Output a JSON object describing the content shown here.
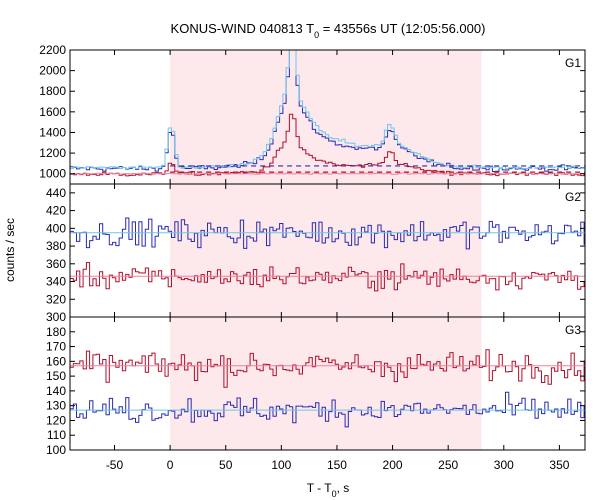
{
  "chart_data": {
    "type": "line",
    "title": "KONUS-WIND 040813 T₀ = 43556s UT (12:05:56.000)",
    "title_parts": {
      "prefix": "KONUS-WIND 040813 T",
      "sub": "0",
      "suffix": " = 43556s UT (12:05:56.000)"
    },
    "xlabel_parts": {
      "prefix": "T - T",
      "sub": "0",
      "suffix": ", s"
    },
    "ylabel": "counts / sec",
    "xlim": [
      -90,
      373
    ],
    "xticks": [
      -50,
      0,
      50,
      100,
      150,
      200,
      250,
      300,
      350
    ],
    "shaded_interval": [
      0,
      280
    ],
    "shade_color": "#fde8ec",
    "colors": {
      "blue": "#2b2bb0",
      "red": "#b0102a",
      "cyan": "#6ec6ea",
      "pink": "#f080a0"
    },
    "bin_width": 2.944,
    "panels": [
      {
        "label": "G1",
        "ylim": [
          900,
          2200
        ],
        "yticks": [
          1000,
          1200,
          1400,
          1600,
          1800,
          2000,
          2200
        ],
        "series": [
          {
            "color": "blue",
            "style": "step",
            "background": 1050,
            "amplitude": 18,
            "pulses": [
              [
                1,
                3,
                380
              ],
              [
                102,
                8,
                200
              ],
              [
                110,
                3,
                600
              ],
              [
                112,
                12,
                330
              ],
              [
                125,
                22,
                120
              ],
              [
                150,
                45,
                180
              ],
              [
                198,
                4,
                160
              ],
              [
                205,
                18,
                110
              ]
            ]
          },
          {
            "color": "cyan",
            "style": "step",
            "background": 1060,
            "amplitude": 12,
            "pulses": [
              [
                1,
                3,
                420
              ],
              [
                102,
                8,
                220
              ],
              [
                110,
                3,
                700
              ],
              [
                112,
                12,
                350
              ],
              [
                125,
                22,
                130
              ],
              [
                150,
                45,
                200
              ],
              [
                198,
                4,
                200
              ],
              [
                205,
                18,
                120
              ]
            ]
          },
          {
            "color": "red",
            "style": "step",
            "background": 995,
            "amplitude": 14,
            "pulses": [
              [
                1,
                3,
                120
              ],
              [
                102,
                8,
                110
              ],
              [
                110,
                3,
                280
              ],
              [
                112,
                12,
                160
              ],
              [
                125,
                22,
                40
              ],
              [
                150,
                45,
                70
              ],
              [
                198,
                4,
                120
              ],
              [
                205,
                18,
                60
              ]
            ]
          },
          {
            "color": "pink",
            "style": "step",
            "background": 1000,
            "amplitude": 4,
            "pulses": []
          },
          {
            "color": "blue",
            "style": "dashed",
            "value": 1075,
            "from": 0,
            "to": 373
          },
          {
            "color": "red",
            "style": "dashed",
            "value": 1015,
            "from": 0,
            "to": 373
          }
        ]
      },
      {
        "label": "G2",
        "ylim": [
          300,
          450
        ],
        "yticks": [
          300,
          320,
          340,
          360,
          380,
          400,
          420,
          440
        ],
        "series": [
          {
            "color": "blue",
            "style": "step",
            "background": 395,
            "amplitude": 11,
            "pulses": []
          },
          {
            "color": "cyan",
            "style": "flat",
            "value": 395
          },
          {
            "color": "red",
            "style": "step",
            "background": 345,
            "amplitude": 9,
            "pulses": []
          },
          {
            "color": "pink",
            "style": "flat",
            "value": 346
          }
        ]
      },
      {
        "label": "G3",
        "ylim": [
          100,
          190
        ],
        "yticks": [
          100,
          110,
          120,
          130,
          140,
          150,
          160,
          170,
          180
        ],
        "series": [
          {
            "color": "red",
            "style": "step",
            "background": 157,
            "amplitude": 6.5,
            "pulses": []
          },
          {
            "color": "pink",
            "style": "flat",
            "value": 157
          },
          {
            "color": "blue",
            "style": "step",
            "background": 127,
            "amplitude": 6,
            "pulses": []
          },
          {
            "color": "cyan",
            "style": "flat",
            "value": 127
          }
        ]
      }
    ]
  }
}
